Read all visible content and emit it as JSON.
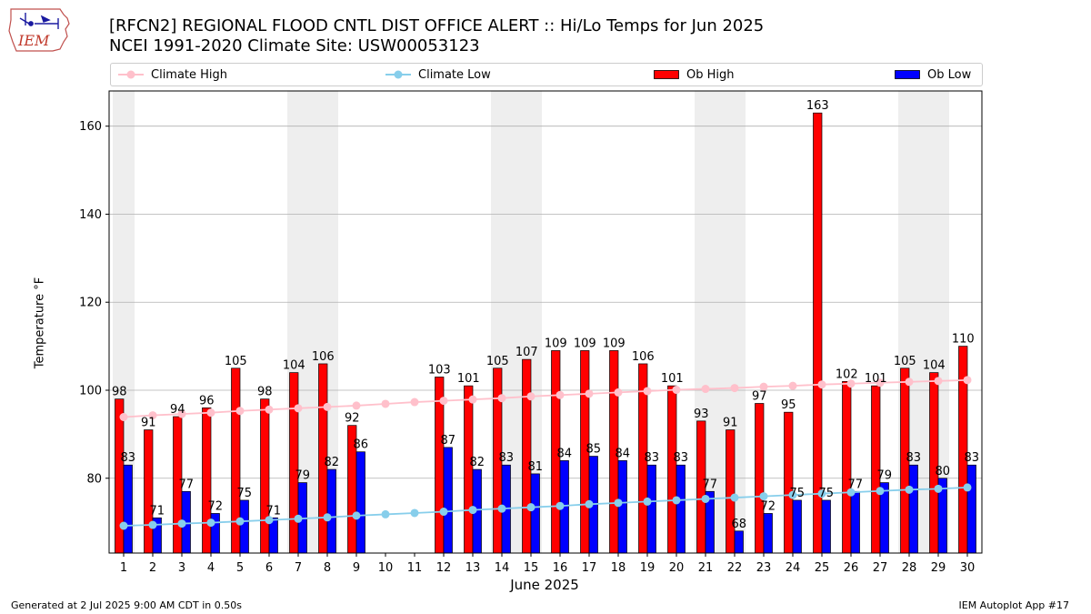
{
  "title_line1": "[RFCN2] REGIONAL FLOOD CNTL DIST OFFICE ALERT :: Hi/Lo Temps for Jun 2025",
  "title_line2": "NCEI 1991-2020 Climate Site: USW00053123",
  "logo_text": "IEM",
  "footer_left": "Generated at 2 Jul 2025 9:00 AM CDT in 0.50s",
  "footer_right": "IEM Autoplot App #17",
  "legend": {
    "climate_high": "Climate High",
    "climate_low": "Climate Low",
    "ob_high": "Ob High",
    "ob_low": "Ob Low"
  },
  "colors": {
    "ob_high": "#ff0000",
    "ob_low": "#0000ff",
    "climate_high": "#ffc0cb",
    "climate_low": "#87ceeb",
    "weekend_shade": "#eeeeee",
    "grid": "#b0b0b0"
  },
  "chart_data": {
    "type": "bar",
    "xlabel": "June 2025",
    "ylabel": "Temperature °F",
    "ylim": [
      63,
      168
    ],
    "yticks": [
      80,
      100,
      120,
      140,
      160
    ],
    "grid": "horizontal",
    "legend_position": "top",
    "categories": [
      "1",
      "2",
      "3",
      "4",
      "5",
      "6",
      "7",
      "8",
      "9",
      "10",
      "11",
      "12",
      "13",
      "14",
      "15",
      "16",
      "17",
      "18",
      "19",
      "20",
      "21",
      "22",
      "23",
      "24",
      "25",
      "26",
      "27",
      "28",
      "29",
      "30"
    ],
    "weekend_days": [
      1,
      7,
      8,
      14,
      15,
      21,
      22,
      28,
      29
    ],
    "series": [
      {
        "name": "Ob High",
        "type": "bar",
        "values": [
          98,
          91,
          94,
          96,
          105,
          98,
          104,
          106,
          92,
          null,
          null,
          103,
          101,
          105,
          107,
          109,
          109,
          109,
          106,
          101,
          93,
          91,
          97,
          95,
          163,
          102,
          101,
          105,
          104,
          110
        ]
      },
      {
        "name": "Ob Low",
        "type": "bar",
        "values": [
          83,
          71,
          77,
          72,
          75,
          71,
          79,
          82,
          86,
          null,
          null,
          87,
          82,
          83,
          81,
          84,
          85,
          84,
          83,
          83,
          77,
          68,
          72,
          75,
          75,
          77,
          79,
          83,
          80,
          83
        ]
      },
      {
        "name": "Climate High",
        "type": "line",
        "values": [
          93.9,
          94.3,
          94.6,
          94.9,
          95.3,
          95.6,
          95.9,
          96.2,
          96.5,
          96.9,
          97.3,
          97.6,
          97.9,
          98.2,
          98.6,
          98.9,
          99.2,
          99.5,
          99.8,
          100.1,
          100.3,
          100.5,
          100.8,
          101.0,
          101.3,
          101.5,
          101.7,
          101.9,
          102.1,
          102.3
        ]
      },
      {
        "name": "Climate Low",
        "type": "line",
        "values": [
          69.2,
          69.4,
          69.7,
          69.9,
          70.2,
          70.5,
          70.8,
          71.1,
          71.5,
          71.8,
          72.1,
          72.4,
          72.8,
          73.1,
          73.4,
          73.7,
          74.1,
          74.4,
          74.7,
          75.0,
          75.3,
          75.6,
          75.9,
          76.2,
          76.5,
          76.8,
          77.1,
          77.4,
          77.6,
          77.9
        ]
      }
    ]
  }
}
